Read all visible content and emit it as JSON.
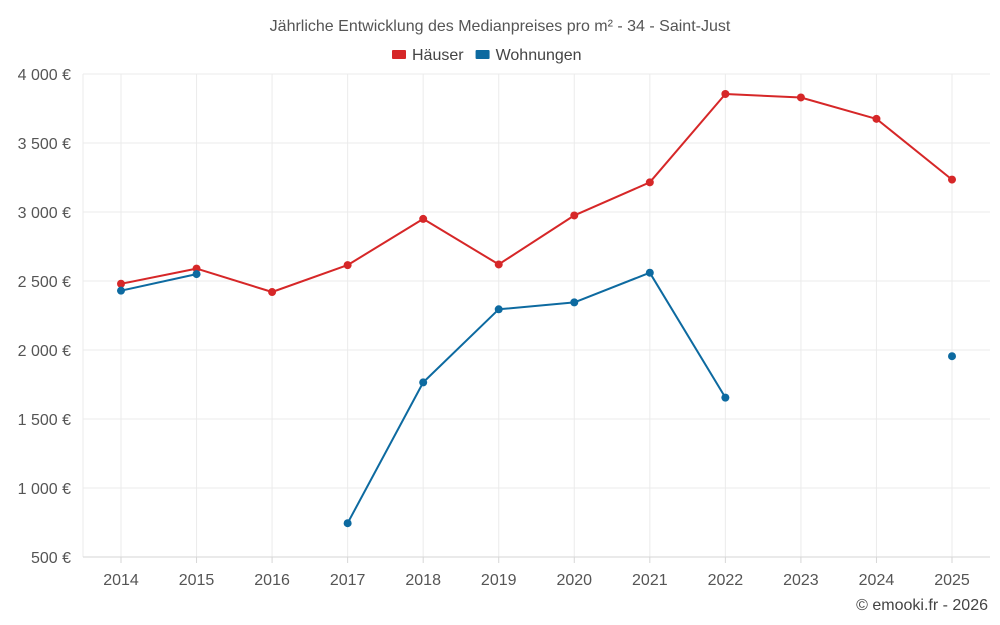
{
  "chart_data": {
    "type": "line",
    "title": "Jährliche Entwicklung des Medianpreises pro m² - 34 - Saint-Just",
    "xlabel": "",
    "ylabel": "",
    "categories": [
      "2014",
      "2015",
      "2016",
      "2017",
      "2018",
      "2019",
      "2020",
      "2021",
      "2022",
      "2023",
      "2024",
      "2025"
    ],
    "ylim": [
      500,
      4000
    ],
    "yticks": [
      500,
      1000,
      1500,
      2000,
      2500,
      3000,
      3500,
      4000
    ],
    "ytick_labels": [
      "500 €",
      "1 000 €",
      "1 500 €",
      "2 000 €",
      "2 500 €",
      "3 000 €",
      "3 500 €",
      "4 000 €"
    ],
    "grid": true,
    "legend_position": "top-center",
    "series": [
      {
        "name": "Häuser",
        "color": "#d62728",
        "values": [
          2480,
          2590,
          2420,
          2615,
          2950,
          2620,
          2975,
          3215,
          3855,
          3830,
          3675,
          3235
        ]
      },
      {
        "name": "Wohnungen",
        "color": "#0d6aa0",
        "values": [
          2430,
          2550,
          null,
          745,
          1765,
          2295,
          2345,
          2560,
          1655,
          null,
          null,
          1955
        ]
      }
    ],
    "copyright": "© emooki.fr - 2026"
  }
}
